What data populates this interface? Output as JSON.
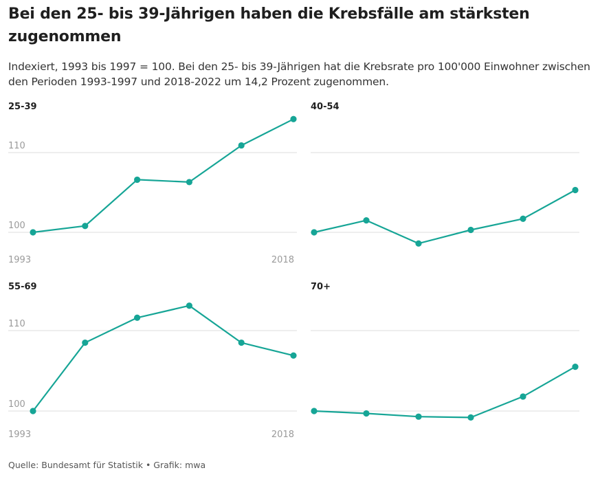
{
  "title": "Bei den 25- bis 39-Jährigen haben die Krebsfälle am stärksten zugenommen",
  "subtitle": "Indexiert, 1993 bis 1997 = 100. Bei den 25- bis 39-Jährigen hat die Krebsrate pro 100'000 Einwohner zwischen den Perioden 1993-1997 und 2018-2022 um 14,2 Prozent zugenommen.",
  "source": "Quelle: Bundesamt für Statistik • Grafik: mwa",
  "colors": {
    "line": "#16a596",
    "grid": "#dcdcdc",
    "tick": "#9a9a9a"
  },
  "chart_data": [
    {
      "type": "line",
      "title": "25-39",
      "x": [
        1993,
        1998,
        2003,
        2008,
        2013,
        2018
      ],
      "values": [
        100.0,
        100.8,
        106.6,
        106.3,
        110.9,
        114.2
      ],
      "ylim": [
        96.5,
        115.5
      ],
      "yticks": [
        100,
        110
      ],
      "show_y_labels": true,
      "x_tick_labels": [
        "1993",
        "2018"
      ]
    },
    {
      "type": "line",
      "title": "40-54",
      "x": [
        1993,
        1998,
        2003,
        2008,
        2013,
        2018
      ],
      "values": [
        100.0,
        101.5,
        98.6,
        100.3,
        101.7,
        105.3
      ],
      "ylim": [
        96.5,
        115.5
      ],
      "yticks": [
        100,
        110
      ],
      "show_y_labels": false,
      "x_tick_labels": []
    },
    {
      "type": "line",
      "title": "55-69",
      "x": [
        1993,
        1998,
        2003,
        2008,
        2013,
        2018
      ],
      "values": [
        100.0,
        108.5,
        111.6,
        113.1,
        108.5,
        106.9
      ],
      "ylim": [
        96.5,
        115.5
      ],
      "yticks": [
        100,
        110
      ],
      "show_y_labels": true,
      "x_tick_labels": [
        "1993",
        "2018"
      ]
    },
    {
      "type": "line",
      "title": "70+",
      "x": [
        1993,
        1998,
        2003,
        2008,
        2013,
        2018
      ],
      "values": [
        100.0,
        99.7,
        99.3,
        99.2,
        101.8,
        105.5
      ],
      "ylim": [
        96.5,
        115.5
      ],
      "yticks": [
        100,
        110
      ],
      "show_y_labels": false,
      "x_tick_labels": []
    }
  ]
}
